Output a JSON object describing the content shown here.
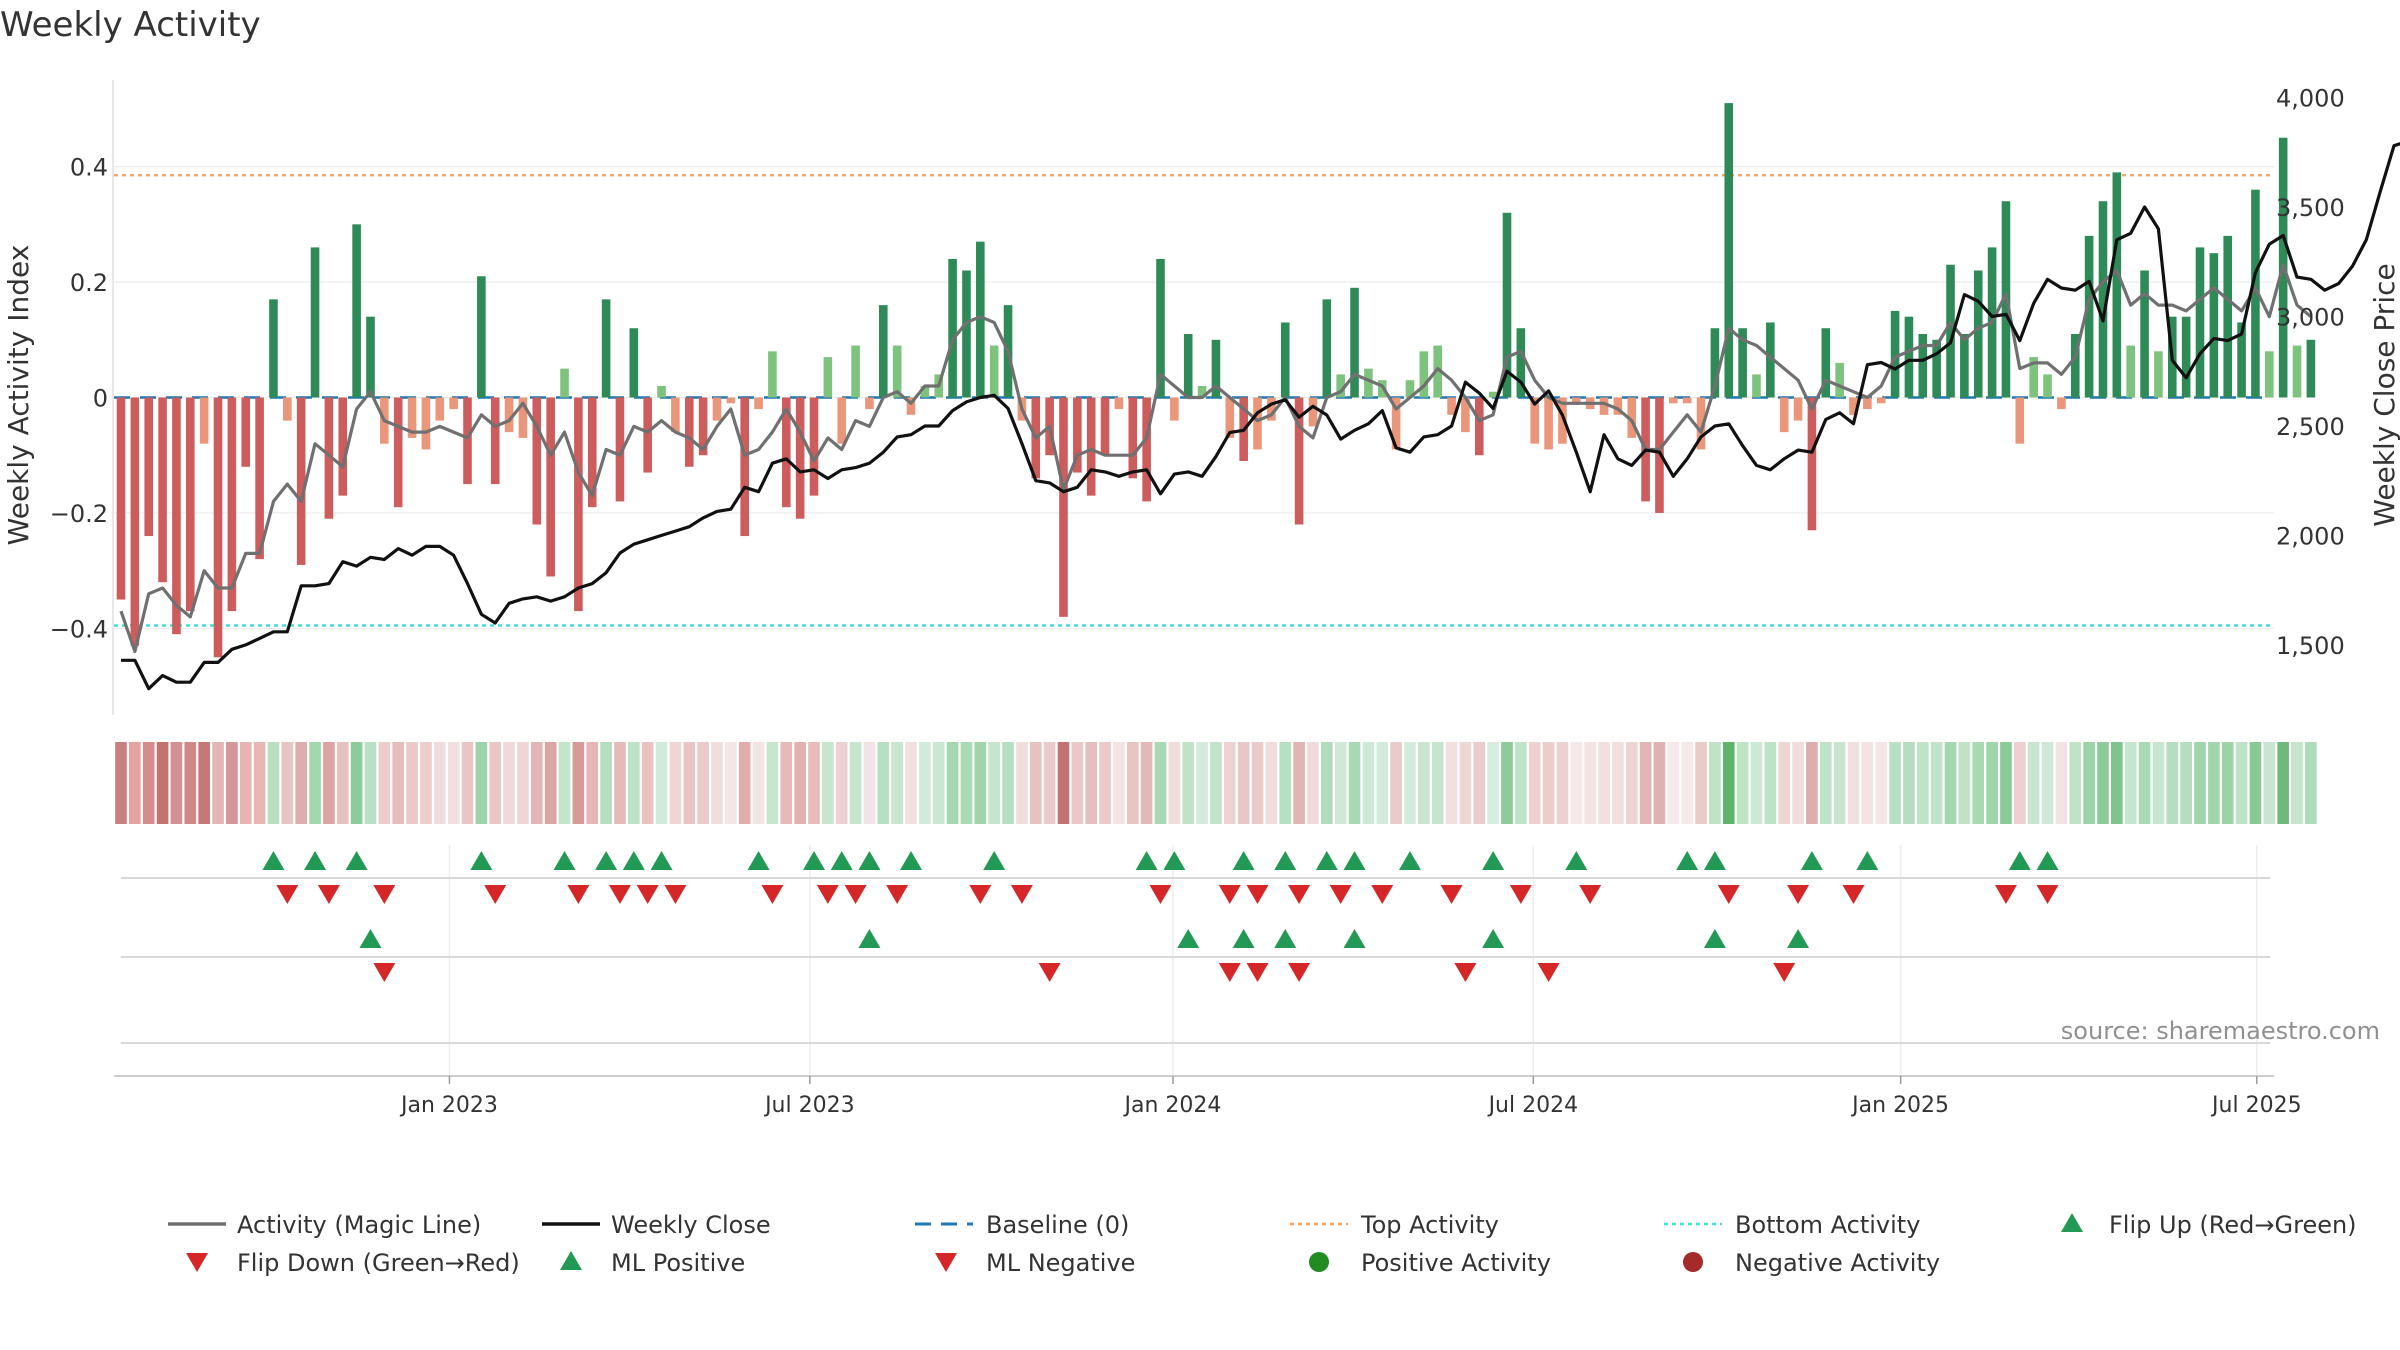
{
  "chart_data": {
    "type": "bar",
    "title": "Weekly Activity",
    "ylabel": "Weekly Activity Index",
    "y2label": "Weekly Close Price",
    "ylim": [
      -0.55,
      0.55
    ],
    "y2lim": [
      1180,
      4080
    ],
    "y_ticks": [
      0.4,
      0.2,
      0,
      -0.2,
      -0.4
    ],
    "y_tick_labels": [
      "0.4",
      "0.2",
      "0",
      "−0.2",
      "−0.4"
    ],
    "y2_ticks": [
      4000,
      3500,
      3000,
      2500,
      2000,
      1500
    ],
    "y2_tick_labels": [
      "4,000",
      "3,500",
      "3,000",
      "2,500",
      "2,000",
      "1,500"
    ],
    "x_ticks": [
      23.7,
      49.7,
      75.9,
      101.9,
      128.4,
      154.1
    ],
    "x_tick_labels": [
      "Jan 2023",
      "Jul 2023",
      "Jan 2024",
      "Jul 2024",
      "Jan 2025",
      "Jul 2025"
    ],
    "top_activity": 0.385,
    "bottom_activity": -0.395,
    "grid": true,
    "source_note": "source: sharemaestro.com",
    "series": [
      {
        "name": "Weekly Activity Index",
        "kind": "bar",
        "values": [
          -0.35,
          -0.43,
          -0.24,
          -0.32,
          -0.41,
          -0.37,
          -0.08,
          -0.45,
          -0.37,
          -0.12,
          -0.28,
          0.17,
          -0.04,
          -0.29,
          0.26,
          -0.21,
          -0.17,
          0.3,
          0.14,
          -0.08,
          -0.19,
          -0.07,
          -0.09,
          -0.04,
          -0.02,
          -0.15,
          0.21,
          -0.15,
          -0.06,
          -0.07,
          -0.22,
          -0.31,
          0.05,
          -0.37,
          -0.19,
          0.17,
          -0.18,
          0.12,
          -0.13,
          0.02,
          -0.06,
          -0.12,
          -0.1,
          -0.04,
          -0.01,
          -0.24,
          -0.02,
          0.08,
          -0.19,
          -0.21,
          -0.17,
          0.07,
          -0.08,
          0.09,
          -0.02,
          0.16,
          0.09,
          -0.03,
          0.02,
          0.04,
          0.24,
          0.22,
          0.27,
          0.09,
          0.16,
          -0.04,
          -0.14,
          -0.1,
          -0.38,
          -0.13,
          -0.17,
          -0.1,
          -0.02,
          -0.14,
          -0.18,
          0.24,
          -0.04,
          0.11,
          0.02,
          0.1,
          -0.07,
          -0.11,
          -0.09,
          -0.04,
          0.13,
          -0.22,
          -0.05,
          0.17,
          0.04,
          0.19,
          0.05,
          0.03,
          -0.09,
          0.03,
          0.08,
          0.09,
          -0.03,
          -0.06,
          -0.1,
          0.01,
          0.32,
          0.12,
          -0.08,
          -0.09,
          -0.08,
          -0.01,
          -0.02,
          -0.03,
          -0.03,
          -0.07,
          -0.18,
          -0.2,
          -0.01,
          -0.01,
          -0.09,
          0.12,
          0.51,
          0.12,
          0.04,
          0.13,
          -0.06,
          -0.04,
          -0.23,
          0.12,
          0.06,
          -0.03,
          -0.02,
          -0.01,
          0.15,
          0.14,
          0.11,
          0.1,
          0.23,
          0.11,
          0.22,
          0.26,
          0.34,
          -0.08,
          0.07,
          0.04,
          -0.02,
          0.11,
          0.28,
          0.34,
          0.39,
          0.09,
          0.22,
          0.08,
          0.14,
          0.14,
          0.26,
          0.25,
          0.28,
          0.13,
          0.36,
          0.08,
          0.45,
          0.09,
          0.1
        ]
      },
      {
        "name": "Activity (Magic Line)",
        "kind": "line",
        "color": "#707070",
        "values": [
          -0.37,
          -0.44,
          -0.34,
          -0.33,
          -0.36,
          -0.38,
          -0.3,
          -0.33,
          -0.33,
          -0.27,
          -0.27,
          -0.18,
          -0.15,
          -0.18,
          -0.08,
          -0.1,
          -0.12,
          -0.02,
          0.01,
          -0.04,
          -0.05,
          -0.06,
          -0.06,
          -0.05,
          -0.06,
          -0.07,
          -0.03,
          -0.05,
          -0.04,
          -0.01,
          -0.05,
          -0.1,
          -0.06,
          -0.13,
          -0.17,
          -0.09,
          -0.1,
          -0.05,
          -0.06,
          -0.04,
          -0.06,
          -0.07,
          -0.09,
          -0.05,
          -0.02,
          -0.1,
          -0.09,
          -0.06,
          -0.02,
          -0.06,
          -0.11,
          -0.07,
          -0.09,
          -0.04,
          -0.05,
          0.0,
          0.01,
          -0.01,
          0.02,
          0.02,
          0.1,
          0.13,
          0.14,
          0.13,
          0.08,
          -0.02,
          -0.07,
          -0.05,
          -0.16,
          -0.1,
          -0.09,
          -0.1,
          -0.1,
          -0.1,
          -0.07,
          0.04,
          0.02,
          0.0,
          0.0,
          0.02,
          0.0,
          -0.02,
          -0.04,
          -0.03,
          0.0,
          -0.05,
          -0.07,
          0.0,
          0.01,
          0.04,
          0.03,
          0.02,
          -0.02,
          0.0,
          0.02,
          0.05,
          0.03,
          0.0,
          -0.04,
          -0.03,
          0.07,
          0.08,
          0.03,
          0.0,
          -0.01,
          -0.01,
          -0.01,
          -0.01,
          -0.02,
          -0.04,
          -0.09,
          -0.09,
          -0.06,
          -0.03,
          -0.06,
          0.02,
          0.12,
          0.1,
          0.09,
          0.07,
          0.05,
          0.03,
          -0.02,
          0.03,
          0.02,
          0.01,
          0.0,
          0.02,
          0.07,
          0.08,
          0.09,
          0.09,
          0.13,
          0.1,
          0.12,
          0.13,
          0.18,
          0.05,
          0.06,
          0.06,
          0.04,
          0.07,
          0.17,
          0.2,
          0.22,
          0.16,
          0.18,
          0.16,
          0.16,
          0.15,
          0.17,
          0.19,
          0.17,
          0.15,
          0.19,
          0.14,
          0.23,
          0.16,
          0.14
        ]
      },
      {
        "name": "Weekly Close",
        "kind": "line",
        "axis": "right",
        "color": "#111111",
        "values": [
          1430,
          1430,
          1300,
          1360,
          1330,
          1330,
          1420,
          1420,
          1480,
          1500,
          1530,
          1560,
          1560,
          1770,
          1770,
          1780,
          1880,
          1860,
          1900,
          1890,
          1940,
          1910,
          1950,
          1950,
          1910,
          1780,
          1640,
          1600,
          1690,
          1710,
          1720,
          1700,
          1720,
          1760,
          1780,
          1830,
          1920,
          1960,
          1980,
          2000,
          2020,
          2040,
          2080,
          2110,
          2120,
          2220,
          2200,
          2330,
          2350,
          2290,
          2300,
          2260,
          2300,
          2310,
          2330,
          2380,
          2450,
          2460,
          2500,
          2500,
          2570,
          2610,
          2630,
          2640,
          2580,
          2420,
          2250,
          2240,
          2200,
          2220,
          2300,
          2290,
          2270,
          2290,
          2300,
          2190,
          2280,
          2290,
          2270,
          2360,
          2470,
          2480,
          2560,
          2600,
          2620,
          2540,
          2590,
          2550,
          2440,
          2480,
          2510,
          2570,
          2400,
          2380,
          2450,
          2460,
          2500,
          2700,
          2650,
          2580,
          2750,
          2700,
          2600,
          2660,
          2550,
          2380,
          2200,
          2460,
          2350,
          2320,
          2390,
          2380,
          2270,
          2350,
          2450,
          2500,
          2510,
          2410,
          2320,
          2300,
          2350,
          2390,
          2380,
          2530,
          2560,
          2510,
          2780,
          2790,
          2760,
          2800,
          2800,
          2830,
          2880,
          3100,
          3070,
          3000,
          3010,
          2890,
          3060,
          3170,
          3130,
          3120,
          3160,
          2980,
          3350,
          3380,
          3500,
          3400,
          2800,
          2720,
          2830,
          2900,
          2890,
          2920,
          3200,
          3330,
          3370,
          3180,
          3170,
          3120,
          3150,
          3230,
          3350,
          3570,
          3780,
          3800,
          3990,
          3930,
          3850,
          3900
        ]
      }
    ],
    "ribbon_colors": [
      "#c87f7f",
      "#e6a3a0",
      "#d48d8c",
      "#c27470",
      "#d39090",
      "#cf8787",
      "#c67876",
      "#e3b5b3",
      "#d49696",
      "#e6b5b3",
      "#e7b7b4",
      "#b7dfc0",
      "#e8c5c4",
      "#e0adad",
      "#a3d7ae",
      "#dda3a3",
      "#e5c1bf",
      "#8ccb9a",
      "#b9e0c2",
      "#eccdcc",
      "#e6bdbb",
      "#ecc9c8",
      "#edcecd",
      "#f0dcdc",
      "#f2e0e0",
      "#e9c5c4",
      "#9dd3aa",
      "#eac6c5",
      "#f0d9d8",
      "#efd6d5",
      "#e4b7b6",
      "#dba5a4",
      "#c5e4cc",
      "#d69a99",
      "#e4b6b5",
      "#b5ddc0",
      "#e5bab9",
      "#bee2c7",
      "#e8c1c0",
      "#d0eadb",
      "#efd6d5",
      "#e9c6c5",
      "#ebcac9",
      "#f1dddc",
      "#f4e6e6",
      "#dfaead",
      "#f3e4e4",
      "#c7e6ce",
      "#e5bab9",
      "#e1b2b1",
      "#e6bdbc",
      "#c8e6cf",
      "#edd1d0",
      "#c5e5cd",
      "#f3e3e3",
      "#b7dfc1",
      "#c7e6ce",
      "#f2e0df",
      "#d0eadb",
      "#cae7d2",
      "#a5d8b1",
      "#abdab6",
      "#9fd5ab",
      "#c5e5cd",
      "#b5ddc0",
      "#f1dddc",
      "#e7c2c1",
      "#ebcac9",
      "#c57272",
      "#e9c8c7",
      "#e6bebd",
      "#ebcac9",
      "#f3e3e3",
      "#e8c4c3",
      "#e4b8b7",
      "#a8d9b3",
      "#f1dddc",
      "#c0e3c8",
      "#d2ebdd",
      "#c2e3ca",
      "#eed3d2",
      "#e9c7c6",
      "#ebcbca",
      "#f1dddc",
      "#b7dfc1",
      "#e2b5b4",
      "#f0dad9",
      "#b1dcbc",
      "#cfe9d8",
      "#a9d9b4",
      "#cfe9d8",
      "#d2ebdd",
      "#ebcbca",
      "#d2ebdd",
      "#c8e6cf",
      "#c5e5cd",
      "#f2e0df",
      "#efd7d6",
      "#eacaca",
      "#d6ede0",
      "#8dcb9a",
      "#bfe3c7",
      "#edd0cf",
      "#eccdcc",
      "#edd1d0",
      "#f5e9e9",
      "#f3e3e3",
      "#f2e0df",
      "#f2e0df",
      "#eed3d2",
      "#e3b6b5",
      "#e0b1b0",
      "#f5e9e9",
      "#f5e9e9",
      "#ebcbca",
      "#bfe3c7",
      "#5fb36b",
      "#bfe3c7",
      "#cde8d6",
      "#bde2c6",
      "#efd6d5",
      "#f1dddc",
      "#dfadac",
      "#bfe3c7",
      "#c8e6cf",
      "#f2e0df",
      "#f3e3e3",
      "#f4e6e6",
      "#b9e0c2",
      "#b5ddc0",
      "#bfe3c7",
      "#c2e3ca",
      "#a5d8b1",
      "#bfe3c7",
      "#a8d9b3",
      "#9fd5ab",
      "#8ccb99",
      "#edd0cf",
      "#c8e6cf",
      "#cde8d6",
      "#f3e3e3",
      "#bfe3c7",
      "#9bd3a7",
      "#8ccb99",
      "#7fc48d",
      "#c5e5cd",
      "#a8d9b3",
      "#c8e6cf",
      "#b5ddc0",
      "#b5ddc0",
      "#9fd5ab",
      "#a1d6ad",
      "#9bd3a7",
      "#bde2c6",
      "#87c894",
      "#c8e6cf",
      "#6dba7b",
      "#c5e5cd",
      "#aedbb8"
    ],
    "flip_up_weeks": [
      11,
      14,
      17,
      26,
      32,
      35,
      37,
      39,
      46,
      50,
      52,
      54,
      57,
      63,
      74,
      76,
      81,
      84,
      87,
      89,
      93,
      99,
      105,
      113,
      115,
      122,
      126,
      137,
      139
    ],
    "flip_down_weeks": [
      12,
      15,
      19,
      27,
      33,
      36,
      38,
      40,
      47,
      51,
      53,
      56,
      62,
      65,
      75,
      80,
      82,
      85,
      88,
      91,
      96,
      101,
      106,
      116,
      121,
      125,
      136,
      139
    ],
    "ml_positive_weeks": [
      18,
      54,
      77,
      81,
      84,
      89,
      99,
      115,
      121
    ],
    "ml_negative_weeks": [
      19,
      67,
      80,
      82,
      85,
      97,
      103,
      120
    ]
  },
  "legend": {
    "magic_line": "Activity (Magic Line)",
    "weekly_close": "Weekly Close",
    "baseline": "Baseline (0)",
    "top_activity": "Top Activity",
    "bottom_activity": "Bottom Activity",
    "flip_up": "Flip Up (Red→Green)",
    "flip_down": "Flip Down (Green→Red)",
    "ml_positive": "ML Positive",
    "ml_negative": "ML Negative",
    "positive_activity": "Positive Activity",
    "negative_activity": "Negative Activity"
  },
  "colors": {
    "pos_strong": "#2e8b57",
    "pos_light": "#7dc27d",
    "neg_strong": "#cd5c5c",
    "neg_light": "#e9967a",
    "top_line": "#f4a460",
    "bottom_line": "#40e0d0",
    "baseline": "#1f77b4",
    "marker_up": "#229954",
    "marker_down": "#d62728",
    "positive_dot": "#228b22",
    "negative_dot": "#a52a2a"
  }
}
